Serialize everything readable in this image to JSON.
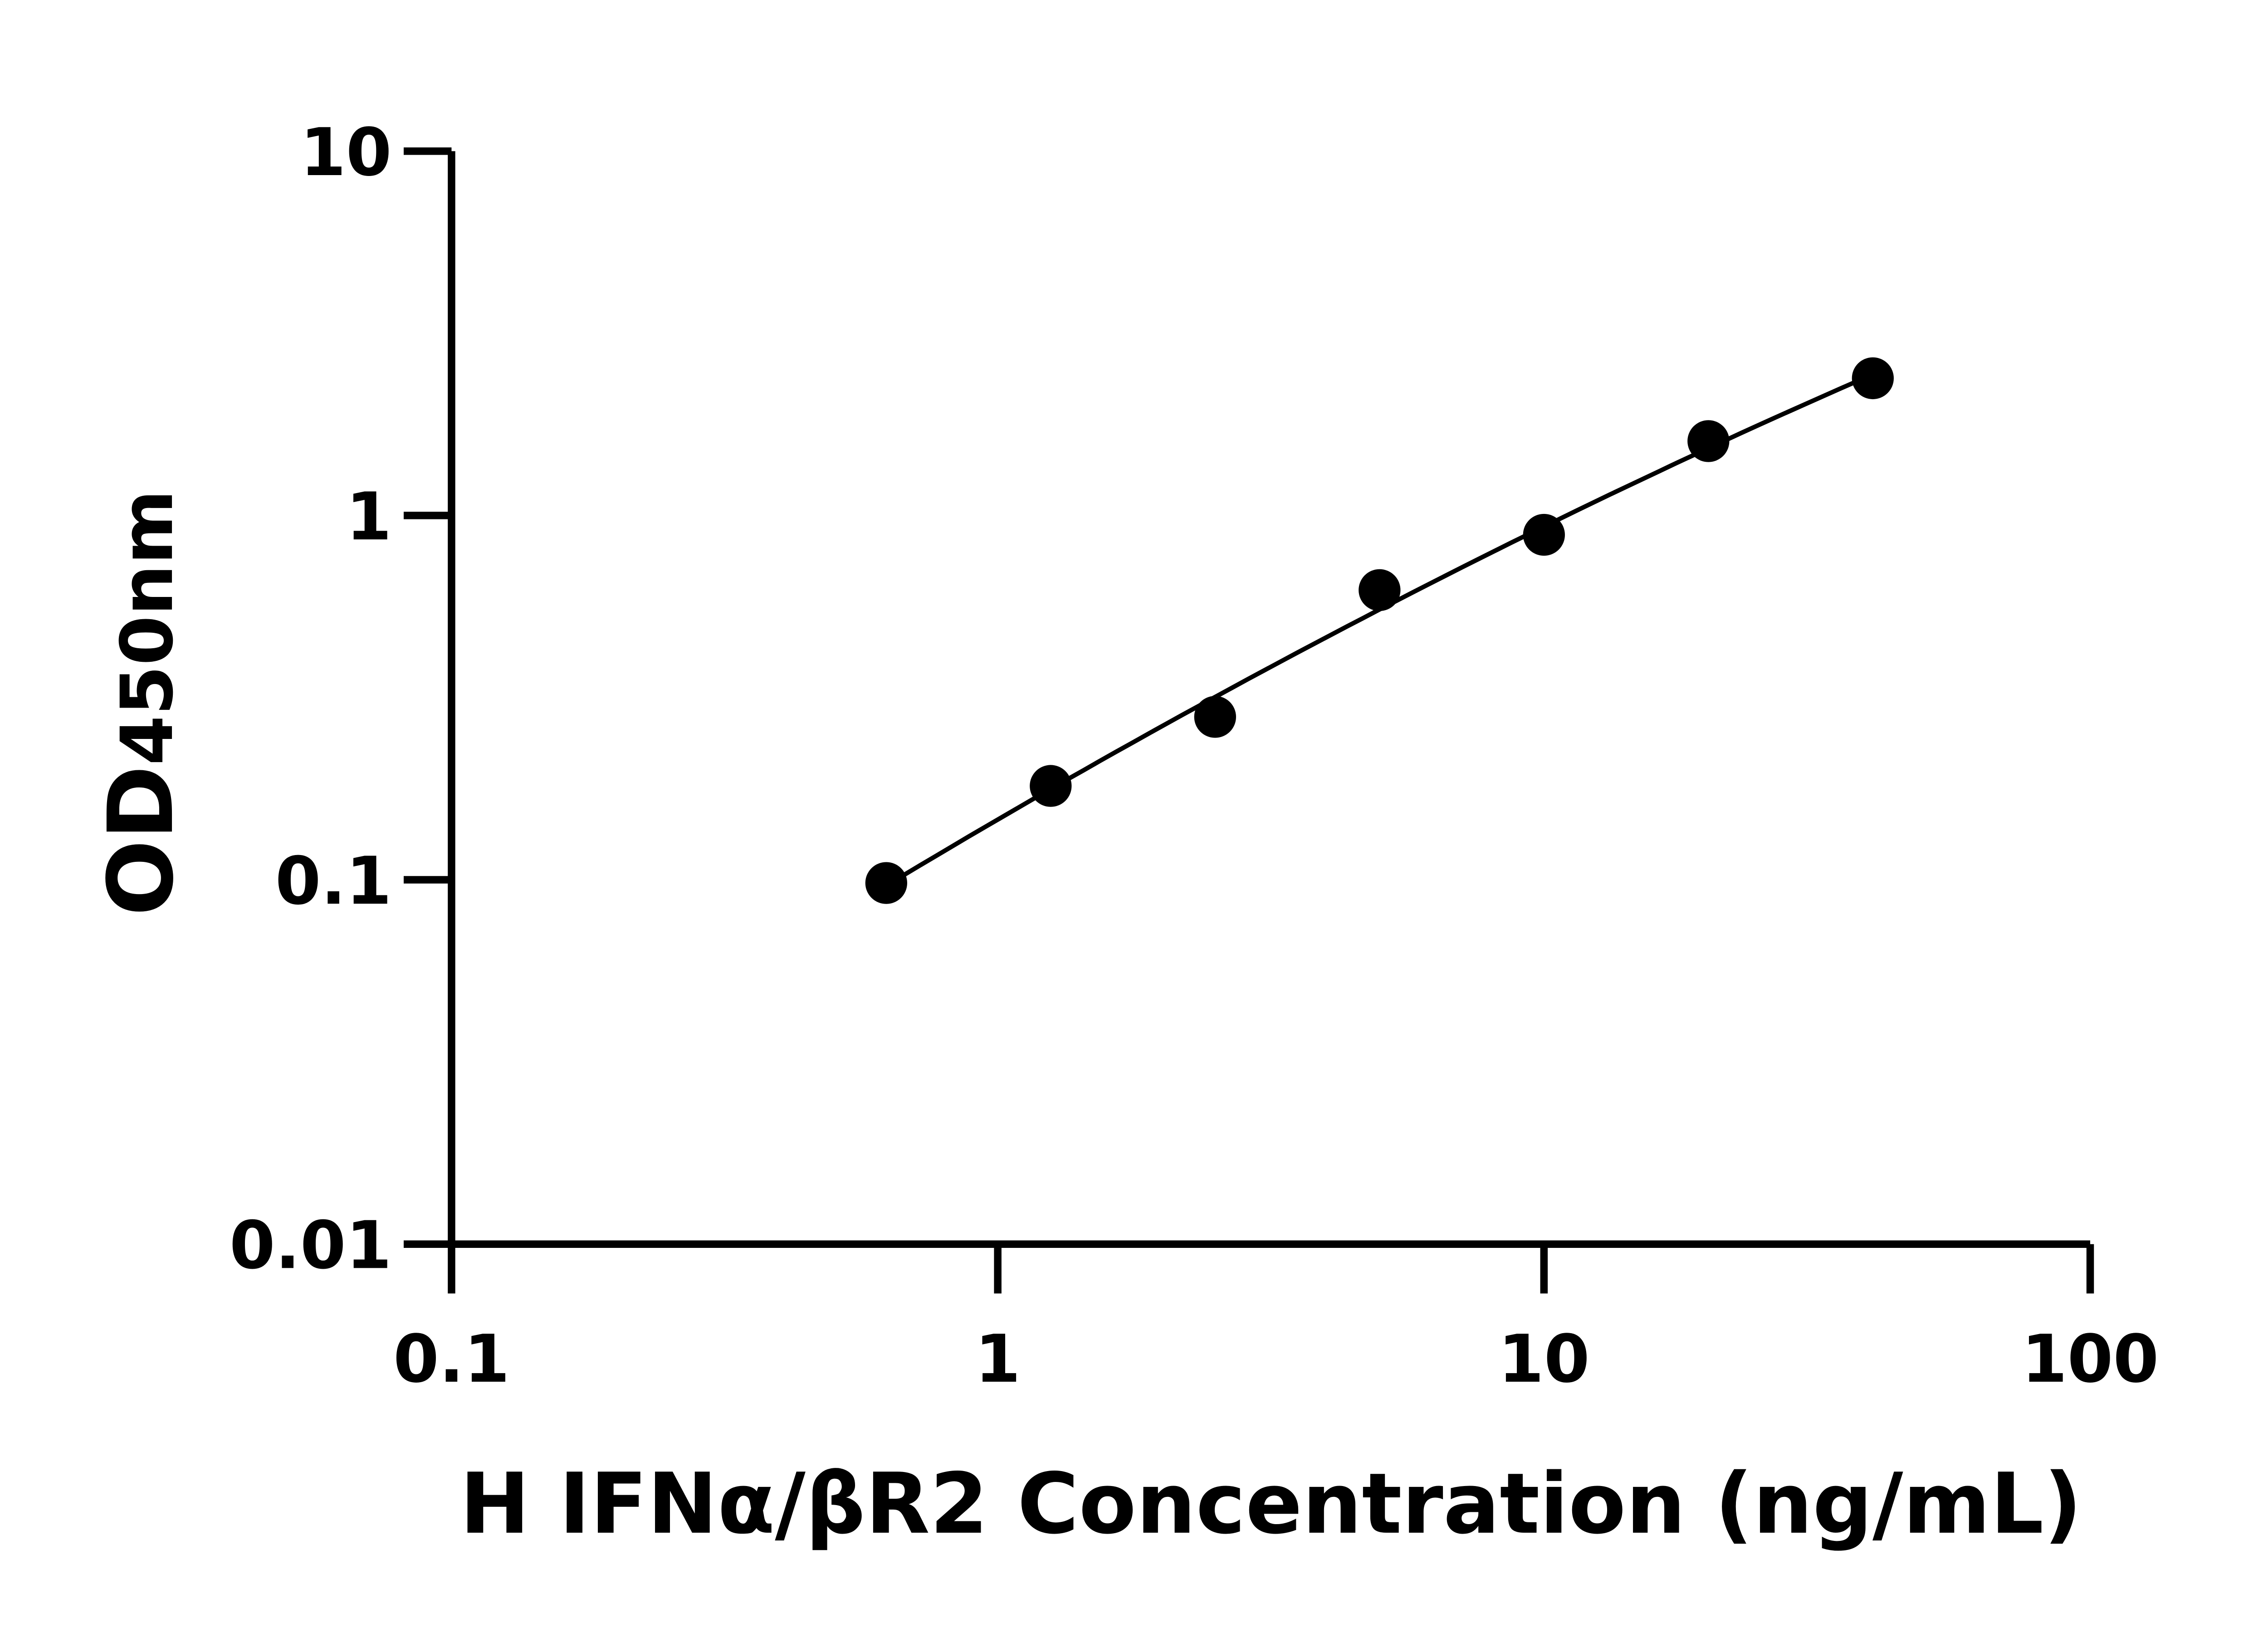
{
  "chart_data": {
    "type": "scatter",
    "title": "",
    "xlabel": "H IFNα/βR2 Concentration (ng/mL)",
    "ylabel": "OD450nm",
    "ylabel_parts": {
      "main": "OD",
      "sub": "450nm"
    },
    "x_scale": "log",
    "y_scale": "log",
    "xlim": [
      0.1,
      100
    ],
    "ylim": [
      0.01,
      10
    ],
    "x_ticks": [
      "0.1",
      "1",
      "10",
      "100"
    ],
    "y_ticks": [
      "0.01",
      "0.1",
      "1",
      "10"
    ],
    "grid": false,
    "fit_curve": true,
    "colors": {
      "points": "#000000",
      "line": "#000000"
    },
    "series": [
      {
        "x": [
          0.625,
          1.25,
          2.5,
          5,
          10,
          20,
          40
        ],
        "y": [
          0.098,
          0.181,
          0.28,
          0.624,
          0.885,
          1.6,
          2.38
        ]
      }
    ]
  }
}
